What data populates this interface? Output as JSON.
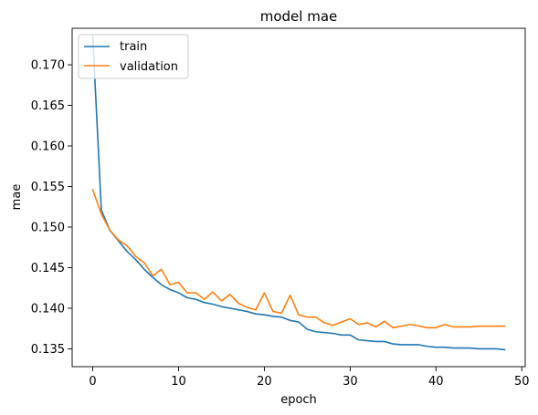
{
  "chart_data": {
    "type": "line",
    "title": "model mae",
    "xlabel": "epoch",
    "ylabel": "mae",
    "xlim": [
      -2.4,
      50.4
    ],
    "ylim": [
      0.1328,
      0.1745
    ],
    "xticks": [
      0,
      10,
      20,
      30,
      40,
      50
    ],
    "yticks": [
      0.135,
      0.14,
      0.145,
      0.15,
      0.155,
      0.16,
      0.165,
      0.17
    ],
    "ytick_labels": [
      "0.135",
      "0.140",
      "0.145",
      "0.150",
      "0.155",
      "0.160",
      "0.165",
      "0.170"
    ],
    "grid": false,
    "legend_position": "top-left",
    "series": [
      {
        "name": "train",
        "color": "#1f77b4",
        "x": [
          0,
          1,
          2,
          3,
          4,
          5,
          6,
          7,
          8,
          9,
          10,
          11,
          12,
          13,
          14,
          15,
          16,
          17,
          18,
          19,
          20,
          21,
          22,
          23,
          24,
          25,
          26,
          27,
          28,
          29,
          30,
          31,
          32,
          33,
          34,
          35,
          36,
          37,
          38,
          39,
          40,
          41,
          42,
          43,
          44,
          45,
          46,
          47,
          48
        ],
        "values": [
          0.1735,
          0.1521,
          0.1496,
          0.1483,
          0.147,
          0.146,
          0.1448,
          0.1438,
          0.1429,
          0.1423,
          0.1419,
          0.1413,
          0.1411,
          0.1407,
          0.1405,
          0.1402,
          0.14,
          0.1398,
          0.1396,
          0.1393,
          0.1392,
          0.139,
          0.1389,
          0.1385,
          0.1383,
          0.1374,
          0.1371,
          0.137,
          0.1369,
          0.1367,
          0.1367,
          0.1361,
          0.136,
          0.1359,
          0.1359,
          0.1356,
          0.1355,
          0.1355,
          0.1355,
          0.1353,
          0.1352,
          0.1352,
          0.1351,
          0.1351,
          0.1351,
          0.135,
          0.135,
          0.135,
          0.1349
        ]
      },
      {
        "name": "validation",
        "color": "#ff7f0e",
        "x": [
          0,
          1,
          2,
          3,
          4,
          5,
          6,
          7,
          8,
          9,
          10,
          11,
          12,
          13,
          14,
          15,
          16,
          17,
          18,
          19,
          20,
          21,
          22,
          23,
          24,
          25,
          26,
          27,
          28,
          29,
          30,
          31,
          32,
          33,
          34,
          35,
          36,
          37,
          38,
          39,
          40,
          41,
          42,
          43,
          44,
          45,
          46,
          47,
          48
        ],
        "values": [
          0.1546,
          0.1516,
          0.1496,
          0.1484,
          0.1477,
          0.1464,
          0.1456,
          0.144,
          0.1448,
          0.1429,
          0.1432,
          0.1419,
          0.1419,
          0.1411,
          0.142,
          0.1409,
          0.1417,
          0.1406,
          0.1401,
          0.1398,
          0.1419,
          0.1396,
          0.1394,
          0.1416,
          0.1392,
          0.1389,
          0.1389,
          0.1382,
          0.1379,
          0.1383,
          0.1387,
          0.138,
          0.1382,
          0.1377,
          0.1384,
          0.1376,
          0.1378,
          0.138,
          0.1378,
          0.1376,
          0.1376,
          0.138,
          0.1377,
          0.1377,
          0.1377,
          0.1378,
          0.1378,
          0.1378,
          0.1378
        ]
      }
    ]
  }
}
